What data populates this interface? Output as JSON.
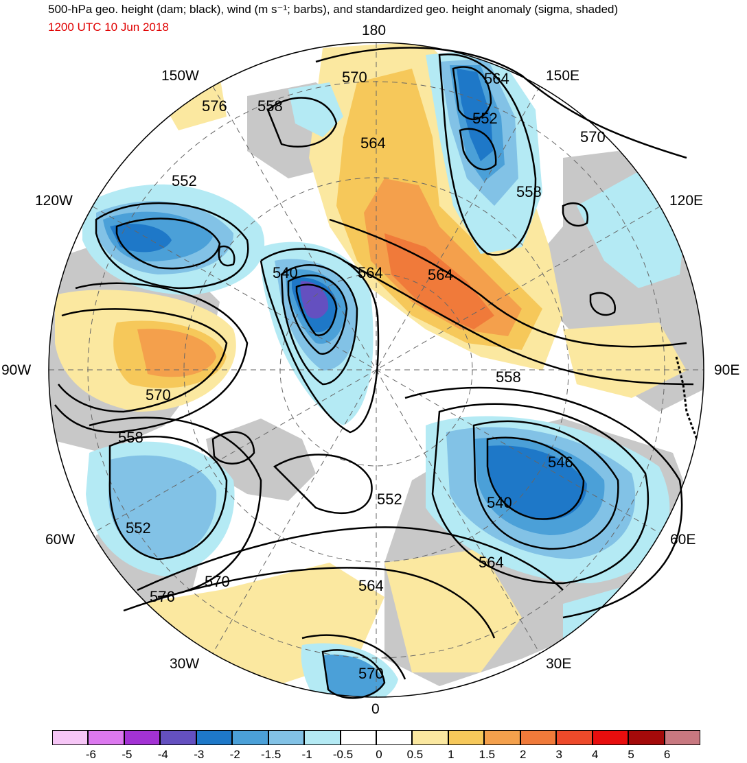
{
  "header": {
    "title": "500-hPa geo. height (dam; black), wind (m s⁻¹; barbs), and standardized geo. height anomaly (sigma, shaded)",
    "timestamp": "1200 UTC 10 Jun 2018"
  },
  "longitude_labels": {
    "top": "180",
    "upper_left": "150W",
    "upper_right": "150E",
    "left_upper": "120W",
    "right_upper": "120E",
    "left": "90W",
    "right": "90E",
    "left_lower": "60W",
    "right_lower": "60E",
    "lower_left": "30W",
    "lower_right": "30E",
    "bottom": "0"
  },
  "contour_labels": {
    "c1": "570",
    "c2": "564",
    "c3": "576",
    "c4": "558",
    "c5": "564",
    "c6": "552",
    "c7": "570",
    "c8": "552",
    "c9": "558",
    "c10": "540",
    "c11": "564",
    "c12": "564",
    "c13": "570",
    "c14": "558",
    "c15": "558",
    "c16": "546",
    "c17": "540",
    "c18": "552",
    "c19": "552",
    "c20": "564",
    "c21": "570",
    "c22": "576",
    "c23": "564",
    "c24": "570"
  },
  "legend": {
    "colors": [
      "#f6c6f6",
      "#dc78ef",
      "#a332d4",
      "#6450c0",
      "#1e78c8",
      "#4ba0d8",
      "#82c2e6",
      "#b4eaf4",
      "#ffffff",
      "#ffffff",
      "#fbe8a0",
      "#f6c85a",
      "#f4a04c",
      "#f07a3a",
      "#ee4a2a",
      "#e80e0e",
      "#a40a0a",
      "#c87880"
    ],
    "ticks": [
      "-6",
      "-5",
      "-4",
      "-3",
      "-2",
      "-1.5",
      "-1",
      "-0.5",
      "0",
      "0.5",
      "1",
      "1.5",
      "2",
      "3",
      "4",
      "5",
      "6"
    ]
  },
  "colors": {
    "land_gray": "#c8c8c8",
    "ocean": "#ffffff",
    "contour": "#000000",
    "title_red": "#e00000"
  }
}
